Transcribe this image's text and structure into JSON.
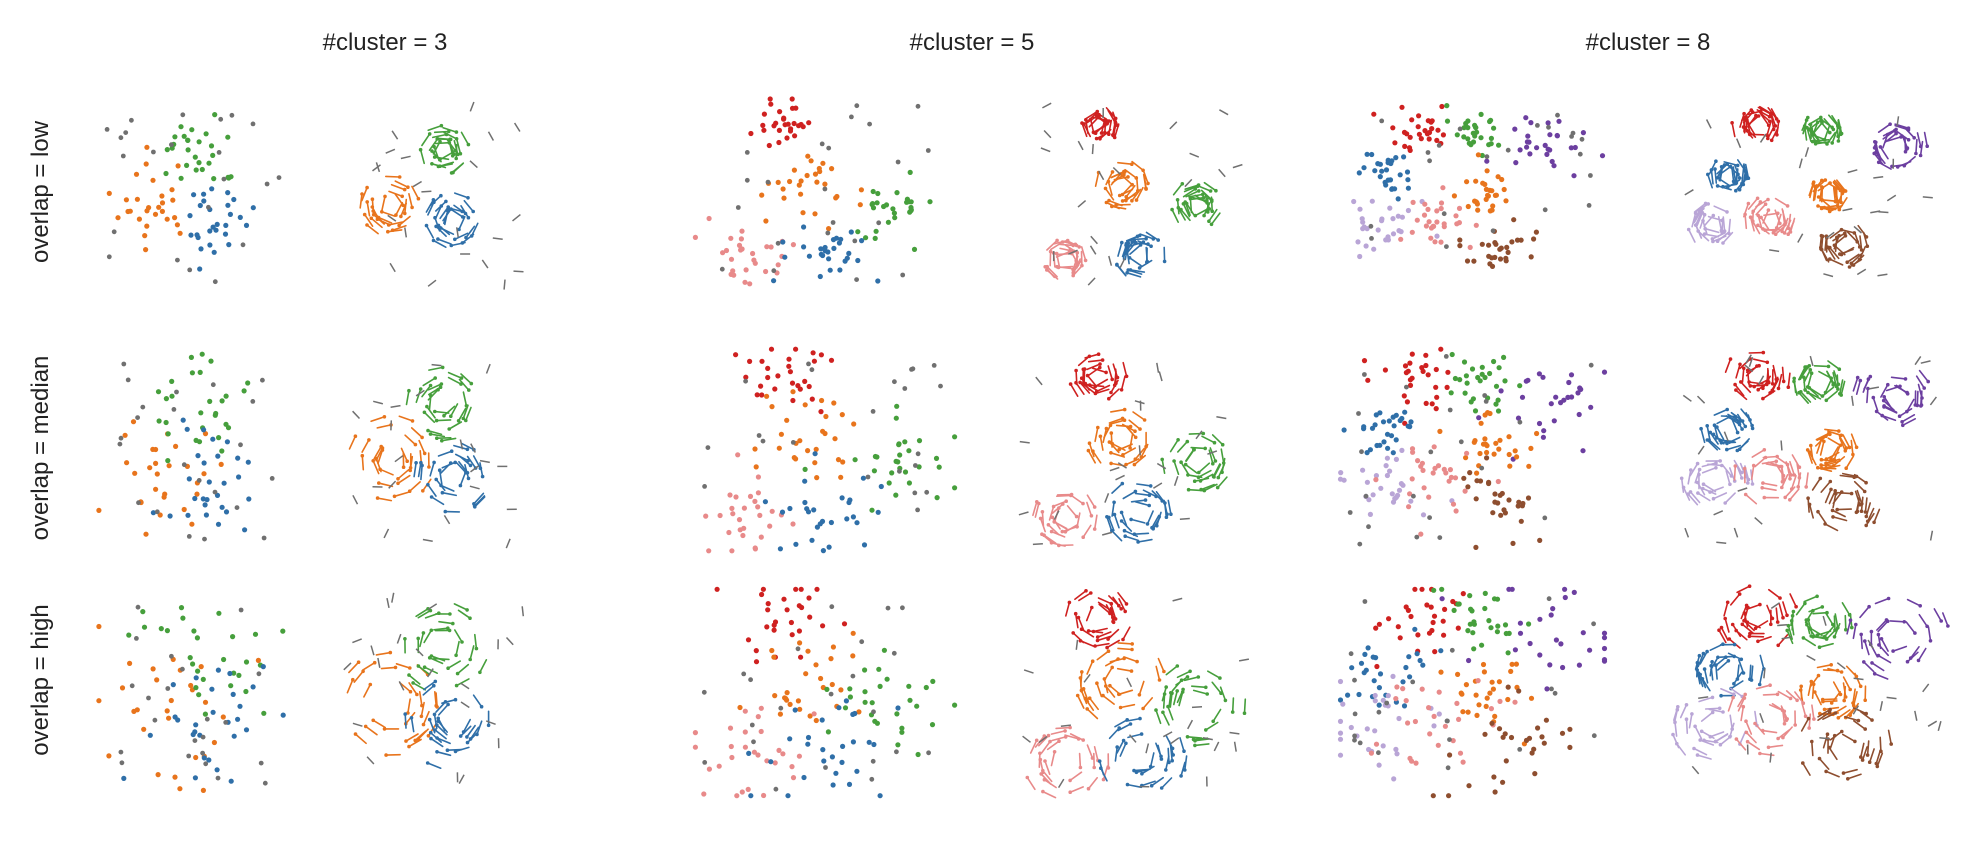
{
  "figure": {
    "column_titles": [
      "#cluster = 3",
      "#cluster = 5",
      "#cluster = 8"
    ],
    "row_labels": [
      "overlap = low",
      "overlap = median",
      "overlap = high"
    ]
  },
  "palette": {
    "blue": "#2f6fa8",
    "orange": "#e8741c",
    "green": "#469f3c",
    "red": "#cf2120",
    "purple": "#6c3fa0",
    "brown": "#8e4e2f",
    "pink": "#e88a8a",
    "lavender": "#b9a5d6",
    "gray": "#707070"
  },
  "chart_data": {
    "type": "scatter",
    "description_of_panels": "3x3 grid of configurations; each cell shows a point scatter (left) and a flow/arrow field view (right). Values are approximate cluster centers and spreads read off the image in normalized panel coordinates (0-1).",
    "columns": [
      {
        "title": "#cluster = 3",
        "clusters": [
          {
            "color": "orange",
            "center": [
              0.3,
              0.55
            ],
            "spread": 0.11
          },
          {
            "color": "green",
            "center": [
              0.55,
              0.28
            ],
            "spread": 0.09
          },
          {
            "color": "blue",
            "center": [
              0.6,
              0.62
            ],
            "spread": 0.1
          }
        ]
      },
      {
        "title": "#cluster = 5",
        "clusters": [
          {
            "color": "red",
            "center": [
              0.35,
              0.15
            ],
            "spread": 0.06
          },
          {
            "color": "orange",
            "center": [
              0.45,
              0.45
            ],
            "spread": 0.08
          },
          {
            "color": "green",
            "center": [
              0.75,
              0.55
            ],
            "spread": 0.08
          },
          {
            "color": "pink",
            "center": [
              0.22,
              0.82
            ],
            "spread": 0.07
          },
          {
            "color": "blue",
            "center": [
              0.52,
              0.8
            ],
            "spread": 0.08
          }
        ]
      },
      {
        "title": "#cluster = 8",
        "clusters": [
          {
            "color": "red",
            "center": [
              0.3,
              0.15
            ],
            "spread": 0.06
          },
          {
            "color": "green",
            "center": [
              0.52,
              0.18
            ],
            "spread": 0.05
          },
          {
            "color": "purple",
            "center": [
              0.78,
              0.25
            ],
            "spread": 0.08
          },
          {
            "color": "blue",
            "center": [
              0.2,
              0.4
            ],
            "spread": 0.05
          },
          {
            "color": "orange",
            "center": [
              0.55,
              0.5
            ],
            "spread": 0.05
          },
          {
            "color": "lavender",
            "center": [
              0.15,
              0.65
            ],
            "spread": 0.07
          },
          {
            "color": "pink",
            "center": [
              0.35,
              0.62
            ],
            "spread": 0.07
          },
          {
            "color": "brown",
            "center": [
              0.6,
              0.75
            ],
            "spread": 0.07
          }
        ]
      }
    ],
    "rows": [
      {
        "label": "overlap = low",
        "spread_multiplier": 1.0
      },
      {
        "label": "overlap = median",
        "spread_multiplier": 1.35
      },
      {
        "label": "overlap = high",
        "spread_multiplier": 1.75
      }
    ],
    "points_per_cluster": 28,
    "noise_color": "gray",
    "noise_points": 22,
    "axes": "hidden",
    "grid": false,
    "legend": "none"
  }
}
